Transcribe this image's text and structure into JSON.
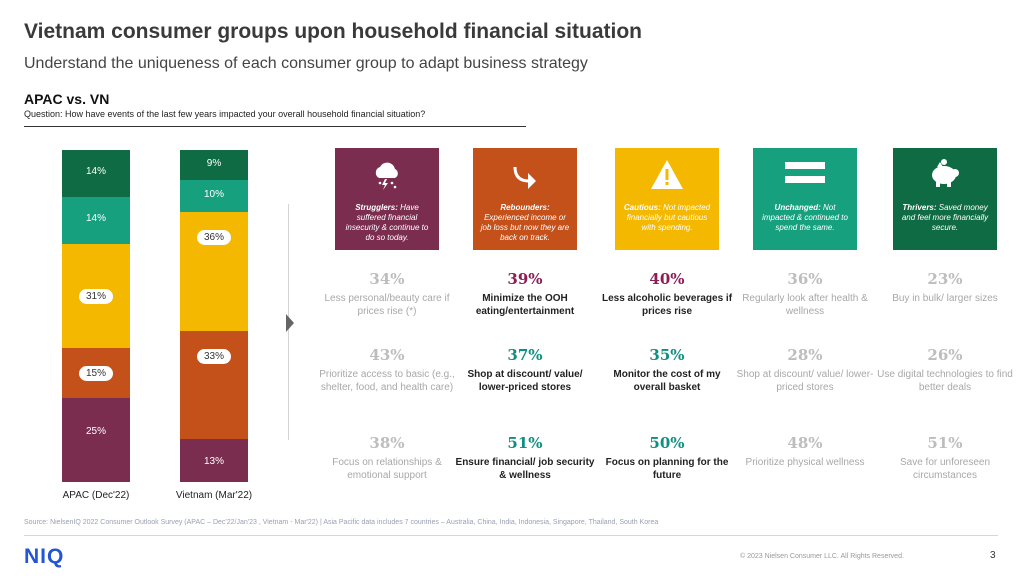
{
  "header": {
    "title": "Vietnam consumer groups upon household financial situation",
    "subtitle": "Understand the uniqueness of each consumer group to adapt business strategy",
    "section": "APAC vs. VN",
    "question": "Question: How have events of the last few years impacted your overall household financial situation?"
  },
  "chart_data": {
    "type": "bar",
    "stacked": true,
    "categories": [
      "APAC (Dec'22)",
      "Vietnam (Mar'22)"
    ],
    "series": [
      {
        "name": "Strugglers",
        "color": "#7b2d50",
        "values": [
          25,
          13
        ]
      },
      {
        "name": "Rebounders",
        "color": "#c4501a",
        "values": [
          15,
          33
        ]
      },
      {
        "name": "Cautious",
        "color": "#f5b800",
        "values": [
          31,
          36
        ]
      },
      {
        "name": "Unchanged",
        "color": "#16a07e",
        "values": [
          14,
          10
        ]
      },
      {
        "name": "Thrivers",
        "color": "#0f6b44",
        "values": [
          14,
          9
        ]
      }
    ],
    "labels": [
      [
        "25%",
        "13%"
      ],
      [
        "15%",
        "33%"
      ],
      [
        "31%",
        "36%"
      ],
      [
        "14%",
        "10%"
      ],
      [
        "14%",
        "9%"
      ]
    ],
    "ylim": [
      0,
      100
    ]
  },
  "groups": [
    {
      "color": "#7b2d50",
      "icon": "storm-cloud-icon",
      "name": "Strugglers:",
      "text": "Have suffered financial insecurity & continue to do so today.",
      "stats": [
        {
          "pct": "34%",
          "desc": "Less personal/beauty care if prices rise (*)",
          "hi": false
        },
        {
          "pct": "43%",
          "desc": "Prioritize access to basic (e.g., shelter, food, and health care)",
          "hi": false
        },
        {
          "pct": "38%",
          "desc": "Focus on relationships & emotional support",
          "hi": false
        }
      ]
    },
    {
      "color": "#c4501a",
      "icon": "rebound-arrow-icon",
      "name": "Rebounders:",
      "text": "Experienced income or job loss but now they are back on track.",
      "stats": [
        {
          "pct": "39%",
          "desc": "Minimize the OOH eating/entertainment",
          "hi": true
        },
        {
          "pct": "37%",
          "desc": "Shop at discount/ value/ lower-priced stores",
          "hi": true
        },
        {
          "pct": "51%",
          "desc": "Ensure financial/ job security & wellness",
          "hi": true
        }
      ]
    },
    {
      "color": "#f5b800",
      "icon": "warning-icon",
      "name": "Cautious:",
      "text": "Not impacted financially but cautious with spending.",
      "stats": [
        {
          "pct": "40%",
          "desc": "Less alcoholic beverages if prices rise",
          "hi": true
        },
        {
          "pct": "35%",
          "desc": "Monitor the cost of my overall basket",
          "hi": true
        },
        {
          "pct": "50%",
          "desc": "Focus on planning for the future",
          "hi": true
        }
      ]
    },
    {
      "color": "#16a07e",
      "icon": "equals-icon",
      "name": "Unchanged:",
      "text": "Not impacted & continued to spend the same.",
      "stats": [
        {
          "pct": "36%",
          "desc": "Regularly look after health & wellness",
          "hi": false
        },
        {
          "pct": "28%",
          "desc": "Shop at discount/ value/ lower-priced stores",
          "hi": false
        },
        {
          "pct": "48%",
          "desc": "Prioritize physical wellness",
          "hi": false
        }
      ]
    },
    {
      "color": "#0f6b44",
      "icon": "piggy-bank-icon",
      "name": "Thrivers:",
      "text": "Saved money and feel more financially secure.",
      "stats": [
        {
          "pct": "23%",
          "desc": "Buy in bulk/ larger sizes",
          "hi": false
        },
        {
          "pct": "26%",
          "desc": "Use digital technologies to find better deals",
          "hi": false
        },
        {
          "pct": "51%",
          "desc": "Save for unforeseen circumstances",
          "hi": false
        }
      ]
    }
  ],
  "footer": {
    "source": "Source: NielsenIQ 2022 Consumer Outlook Survey (APAC – Dec'22/Jan'23 , Vietnam - Mar'22) | Asia Pacific data includes 7 countries –  Australia, China, India, Indonesia, Singapore, Thailand, South Korea",
    "logo": "NIQ",
    "copyright": "© 2023 Nielsen Consumer LLC. All Rights Reserved.",
    "page": "3"
  }
}
